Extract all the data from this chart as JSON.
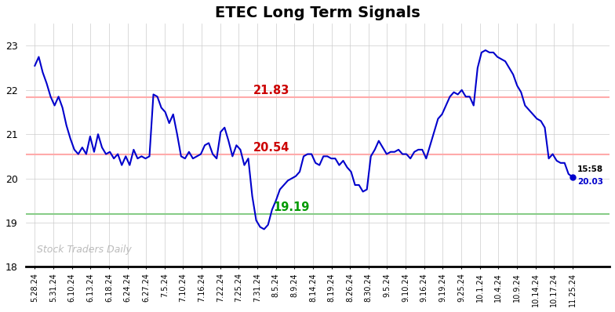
{
  "title": "ETEC Long Term Signals",
  "watermark": "Stock Traders Daily",
  "xlabels": [
    "5.28.24",
    "5.31.24",
    "6.10.24",
    "6.13.24",
    "6.18.24",
    "6.24.24",
    "6.27.24",
    "7.5.24",
    "7.10.24",
    "7.16.24",
    "7.22.24",
    "7.25.24",
    "7.31.24",
    "8.5.24",
    "8.9.24",
    "8.14.24",
    "8.19.24",
    "8.26.24",
    "8.30.24",
    "9.5.24",
    "9.10.24",
    "9.16.24",
    "9.19.24",
    "9.25.24",
    "10.1.24",
    "10.4.24",
    "10.9.24",
    "10.14.24",
    "10.17.24",
    "11.25.24"
  ],
  "y_trace": [
    22.55,
    22.75,
    22.4,
    22.15,
    21.85,
    21.65,
    21.85,
    21.6,
    21.2,
    20.9,
    20.65,
    20.55,
    20.7,
    20.55,
    20.95,
    20.6,
    21.0,
    20.7,
    20.55,
    20.6,
    20.45,
    20.55,
    20.3,
    20.5,
    20.3,
    20.65,
    20.45,
    20.5,
    20.45,
    20.5,
    21.9,
    21.85,
    21.6,
    21.5,
    21.25,
    21.45,
    21.0,
    20.5,
    20.45,
    20.6,
    20.45,
    20.5,
    20.55,
    20.75,
    20.8,
    20.55,
    20.45,
    21.05,
    21.15,
    20.85,
    20.5,
    20.75,
    20.65,
    20.3,
    20.45,
    19.6,
    19.05,
    18.9,
    18.85,
    18.95,
    19.29,
    19.5,
    19.75,
    19.85,
    19.95,
    20.0,
    20.05,
    20.15,
    20.5,
    20.55,
    20.55,
    20.35,
    20.3,
    20.5,
    20.5,
    20.45,
    20.45,
    20.3,
    20.4,
    20.25,
    20.15,
    19.85,
    19.85,
    19.7,
    19.75,
    20.5,
    20.65,
    20.85,
    20.7,
    20.55,
    20.6,
    20.6,
    20.65,
    20.55,
    20.55,
    20.45,
    20.6,
    20.65,
    20.65,
    20.45,
    20.75,
    21.05,
    21.35,
    21.45,
    21.65,
    21.85,
    21.95,
    21.9,
    22.0,
    21.85,
    21.85,
    21.65,
    22.5,
    22.85,
    22.9,
    22.85,
    22.85,
    22.75,
    22.7,
    22.65,
    22.5,
    22.35,
    22.1,
    21.95,
    21.65,
    21.55,
    21.45,
    21.35,
    21.3,
    21.15,
    20.45,
    20.55,
    20.4,
    20.35,
    20.35,
    20.1,
    20.03
  ],
  "line_color": "#0000cc",
  "hline_upper": 21.83,
  "hline_mid": 20.54,
  "hline_lower": 19.19,
  "hline_upper_color": "#ffaaaa",
  "hline_mid_color": "#ffaaaa",
  "hline_lower_color": "#88cc88",
  "label_upper_color": "#cc0000",
  "label_mid_color": "#cc0000",
  "label_lower_color": "#009900",
  "ylim_min": 18.0,
  "ylim_max": 23.5,
  "yticks": [
    18,
    19,
    20,
    21,
    22,
    23
  ],
  "endpoint_label_time": "15:58",
  "endpoint_label_value": "20.03",
  "endpoint_color": "#0000cc",
  "background_color": "#ffffff",
  "grid_color": "#cccccc",
  "title_fontsize": 14,
  "watermark_color": "#bbbbbb",
  "fig_width": 7.84,
  "fig_height": 3.98,
  "fig_dpi": 100
}
